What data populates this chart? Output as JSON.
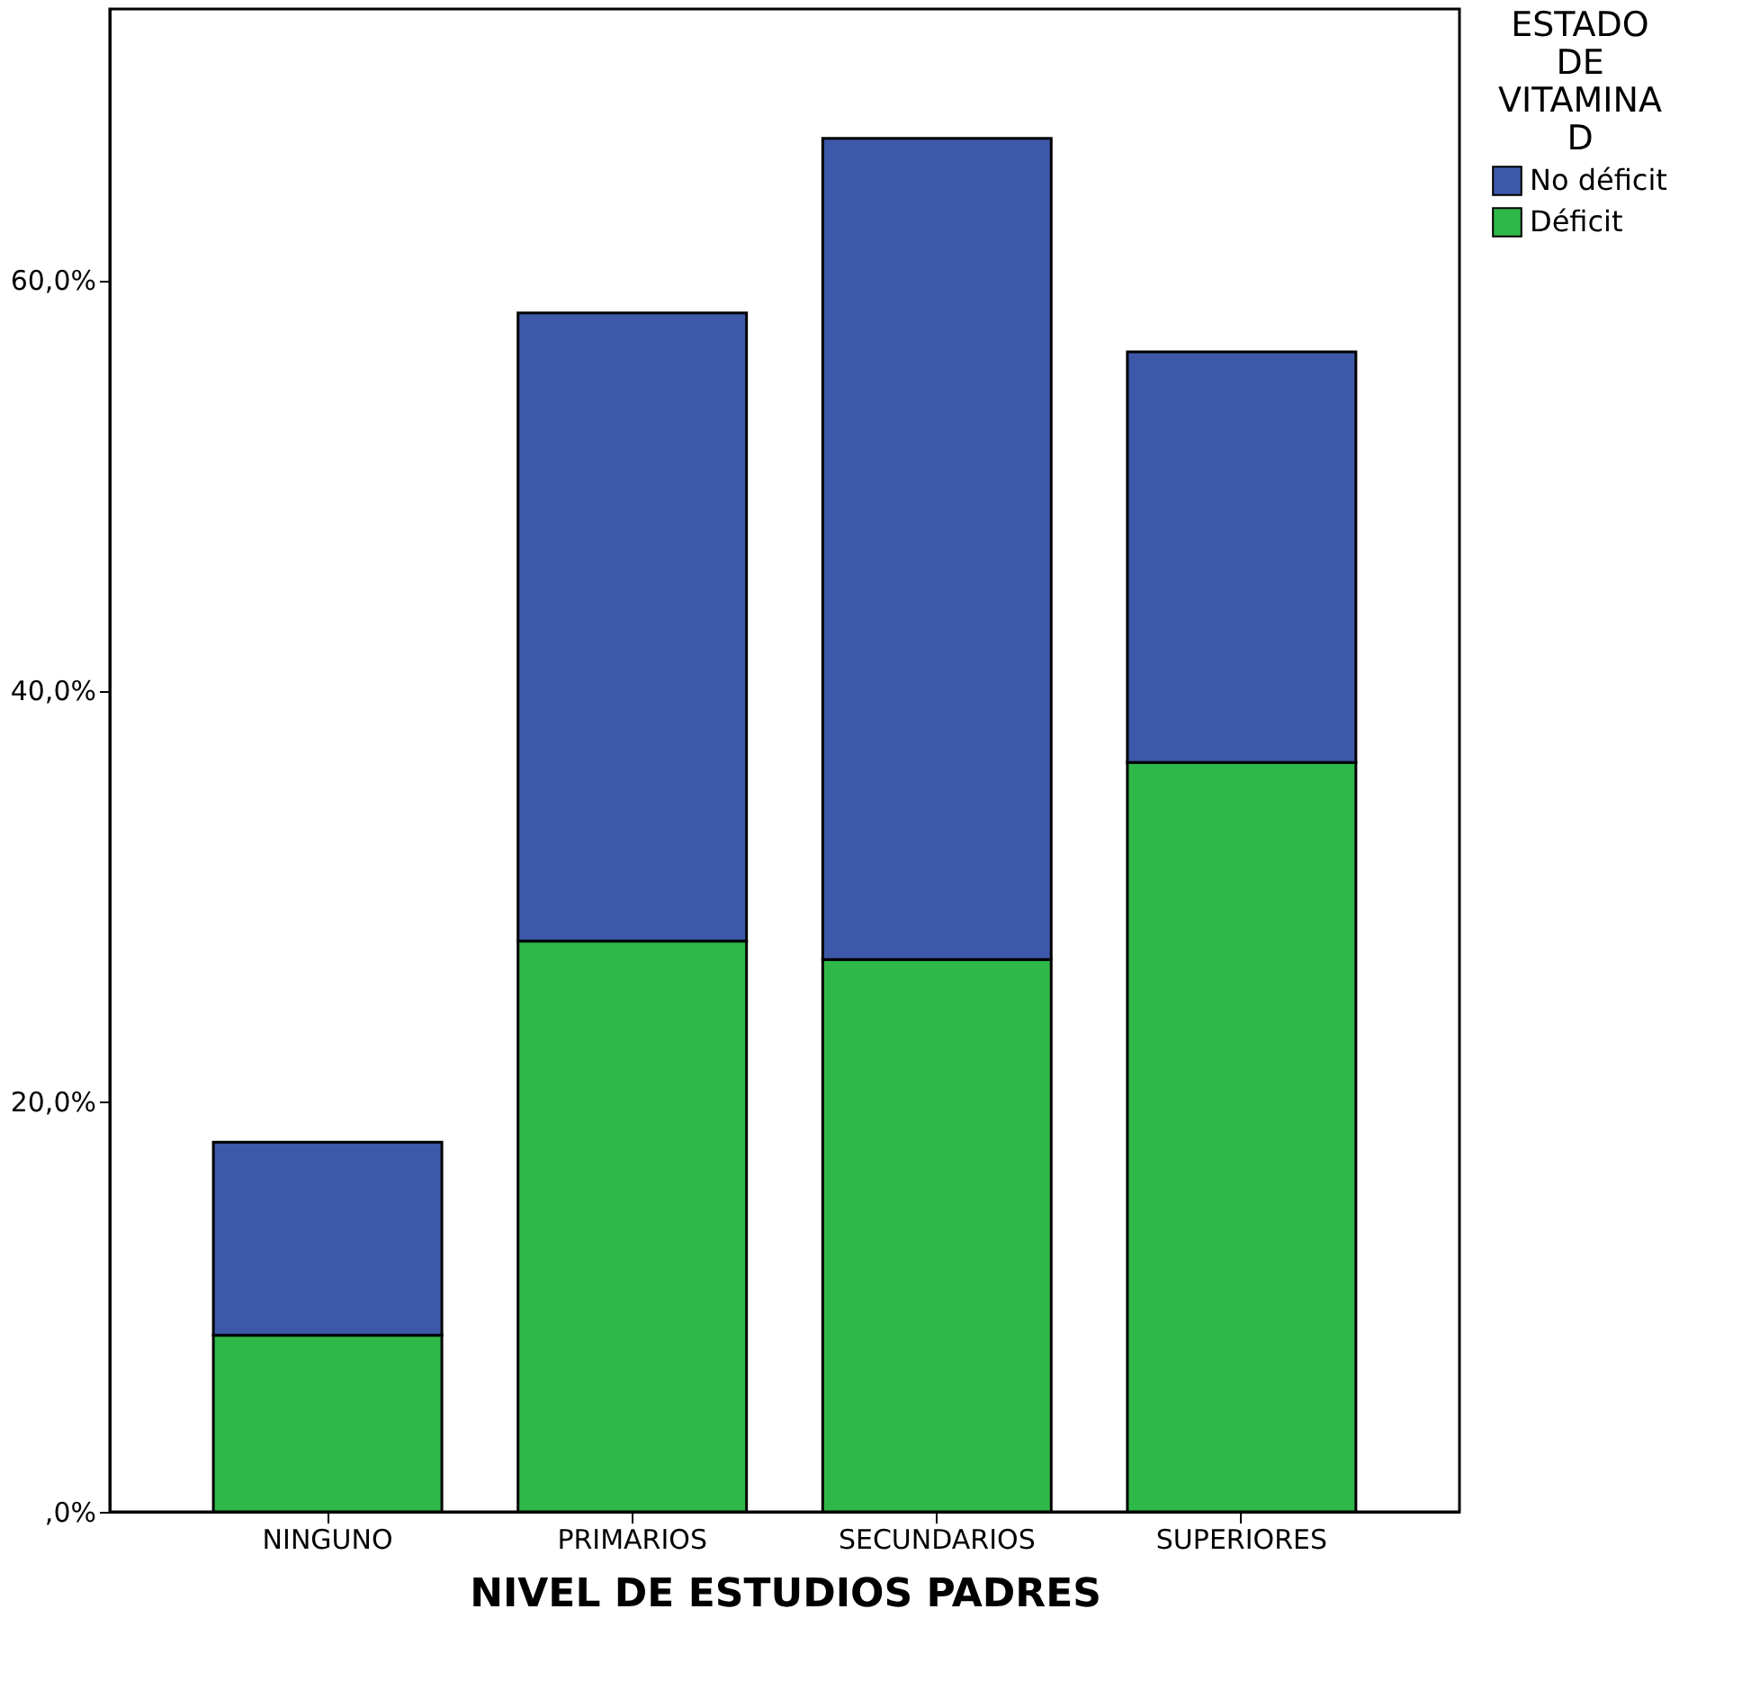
{
  "chart_data": {
    "type": "bar",
    "stacked": true,
    "xlabel": "NIVEL DE ESTUDIOS PADRES",
    "legend_title": "ESTADO DE VITAMINA D",
    "legend": "top right",
    "categories": [
      "NINGUNO",
      "PRIMARIOS",
      "SECUNDARIOS",
      "SUPERIORES"
    ],
    "series": [
      {
        "name": "Déficit",
        "color": "#2fb84a",
        "values": [
          8.6,
          27.8,
          26.9,
          36.5
        ]
      },
      {
        "name": "No déficit",
        "color": "#3d58a8",
        "values": [
          9.4,
          30.6,
          40.0,
          20.0
        ]
      }
    ],
    "ylim": [
      0,
      73.2
    ],
    "yticks": [
      {
        "value": 0,
        "label": ",0%"
      },
      {
        "value": 20,
        "label": "20,0%"
      },
      {
        "value": 40,
        "label": "40,0%"
      },
      {
        "value": 60,
        "label": "60,0%"
      }
    ],
    "grid": false
  }
}
